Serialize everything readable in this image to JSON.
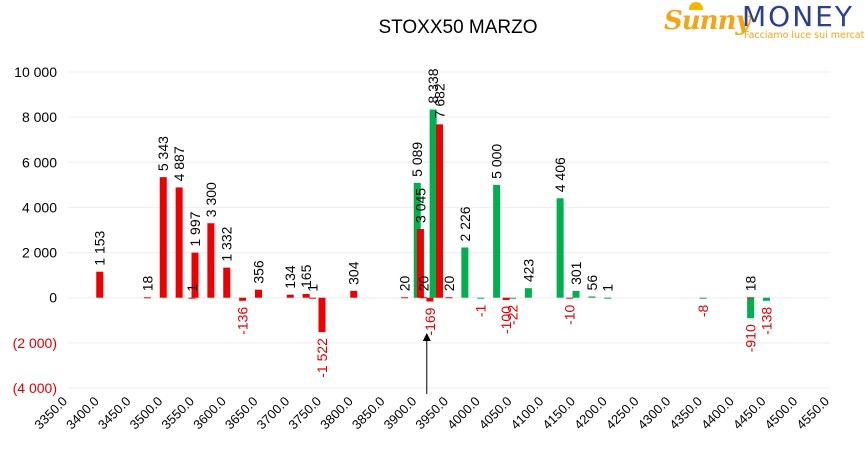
{
  "brand": {
    "name_part1": "Sunny",
    "name_part2": "MONEY",
    "tagline": "Facciamo luce sui mercati",
    "colors": {
      "sun": "#f2a516",
      "text": "#2a3f8f"
    }
  },
  "chart_data": {
    "type": "bar",
    "title": "STOXX50 MARZO",
    "xlabel": "",
    "ylabel": "",
    "ylim": [
      -4000,
      10000
    ],
    "yticks": [
      {
        "value": 10000,
        "label": "10 000",
        "color": "#000000"
      },
      {
        "value": 8000,
        "label": "8 000",
        "color": "#000000"
      },
      {
        "value": 6000,
        "label": "6 000",
        "color": "#000000"
      },
      {
        "value": 4000,
        "label": "4 000",
        "color": "#000000"
      },
      {
        "value": 2000,
        "label": "2 000",
        "color": "#000000"
      },
      {
        "value": 0,
        "label": "0",
        "color": "#000000"
      },
      {
        "value": -2000,
        "label": "(2 000)",
        "color": "#e00000"
      },
      {
        "value": -4000,
        "label": "(4 000)",
        "color": "#e00000"
      }
    ],
    "xlim": [
      3350,
      4550
    ],
    "xticks": [
      "3350.0",
      "3400.0",
      "3450.0",
      "3500.0",
      "3550.0",
      "3600.0",
      "3650.0",
      "3700.0",
      "3750.0",
      "3800.0",
      "3850.0",
      "3900.0",
      "3950.0",
      "4000.0",
      "4050.0",
      "4100.0",
      "4150.0",
      "4200.0",
      "4250.0",
      "4300.0",
      "4350.0",
      "4400.0",
      "4450.0",
      "4500.0",
      "4550.0"
    ],
    "grid": true,
    "legend": "none",
    "series": [
      {
        "color": "#00b050",
        "points": [
          {
            "x": 3900,
            "y": 5089,
            "label": "5 089",
            "label_color": "#000000"
          },
          {
            "x": 3925,
            "y": 8338,
            "label": "8 338",
            "label_color": "#000000"
          },
          {
            "x": 3975,
            "y": 2226,
            "label": "2 226",
            "label_color": "#000000"
          },
          {
            "x": 4000,
            "y": -1,
            "label": "-1",
            "label_color": "#e00000"
          },
          {
            "x": 4025,
            "y": 5000,
            "label": "5 000",
            "label_color": "#000000"
          },
          {
            "x": 4050,
            "y": -22,
            "label": "-22",
            "label_color": "#e00000"
          },
          {
            "x": 4075,
            "y": 423,
            "label": "423",
            "label_color": "#000000"
          },
          {
            "x": 4125,
            "y": 4406,
            "label": "4 406",
            "label_color": "#000000"
          },
          {
            "x": 4150,
            "y": 301,
            "label": "301",
            "label_color": "#000000"
          },
          {
            "x": 4175,
            "y": 56,
            "label": "56",
            "label_color": "#000000"
          },
          {
            "x": 4200,
            "y": 1,
            "label": "1",
            "label_color": "#000000"
          },
          {
            "x": 4350,
            "y": -8,
            "label": "-8",
            "label_color": "#e00000"
          },
          {
            "x": 4425,
            "y": -910,
            "label": "-910",
            "label_color": "#e00000"
          },
          {
            "x": 4450,
            "y": -138,
            "label": "-138",
            "label_color": "#e00000"
          }
        ]
      },
      {
        "color": "#ee0000",
        "points": [
          {
            "x": 3400,
            "y": 1153,
            "label": "1 153",
            "label_color": "#000000"
          },
          {
            "x": 3475,
            "y": 18,
            "label": "18",
            "label_color": "#000000"
          },
          {
            "x": 3500,
            "y": 5343,
            "label": "5 343",
            "label_color": "#000000"
          },
          {
            "x": 3525,
            "y": 4887,
            "label": "4 887",
            "label_color": "#000000"
          },
          {
            "x": 3545,
            "y": 1,
            "label": "1",
            "label_color": "#000000"
          },
          {
            "x": 3550,
            "y": 1997,
            "label": "1 997",
            "label_color": "#000000"
          },
          {
            "x": 3575,
            "y": 3300,
            "label": "3 300",
            "label_color": "#000000"
          },
          {
            "x": 3600,
            "y": 1332,
            "label": "1 332",
            "label_color": "#000000"
          },
          {
            "x": 3625,
            "y": -136,
            "label": "-136",
            "label_color": "#e00000"
          },
          {
            "x": 3650,
            "y": 356,
            "label": "356",
            "label_color": "#000000"
          },
          {
            "x": 3700,
            "y": 134,
            "label": "134",
            "label_color": "#000000"
          },
          {
            "x": 3725,
            "y": 165,
            "label": "165",
            "label_color": "#000000"
          },
          {
            "x": 3735,
            "y": 1,
            "label": "1",
            "label_color": "#000000"
          },
          {
            "x": 3750,
            "y": -1522,
            "label": "-1 522",
            "label_color": "#e00000"
          },
          {
            "x": 3800,
            "y": 304,
            "label": "304",
            "label_color": "#000000"
          },
          {
            "x": 3880,
            "y": 20,
            "label": "20",
            "label_color": "#000000"
          },
          {
            "x": 3905,
            "y": 3045,
            "label": "3 045",
            "label_color": "#000000"
          },
          {
            "x": 3910,
            "y": 20,
            "label": "20",
            "label_color": "#000000"
          },
          {
            "x": 3920,
            "y": -169,
            "label": "-169",
            "label_color": "#e00000"
          },
          {
            "x": 3935,
            "y": 7682,
            "label": "7 682",
            "label_color": "#000000"
          },
          {
            "x": 3950,
            "y": 20,
            "label": "20",
            "label_color": "#000000"
          },
          {
            "x": 4040,
            "y": -100,
            "label": "-100",
            "label_color": "#e00000"
          },
          {
            "x": 4140,
            "y": -10,
            "label": "-10",
            "label_color": "#e00000"
          },
          {
            "x": 4425,
            "y": 18,
            "label": "18",
            "label_color": "#000000"
          }
        ]
      }
    ],
    "marker": {
      "x": 3915,
      "type": "arrow-up"
    }
  }
}
